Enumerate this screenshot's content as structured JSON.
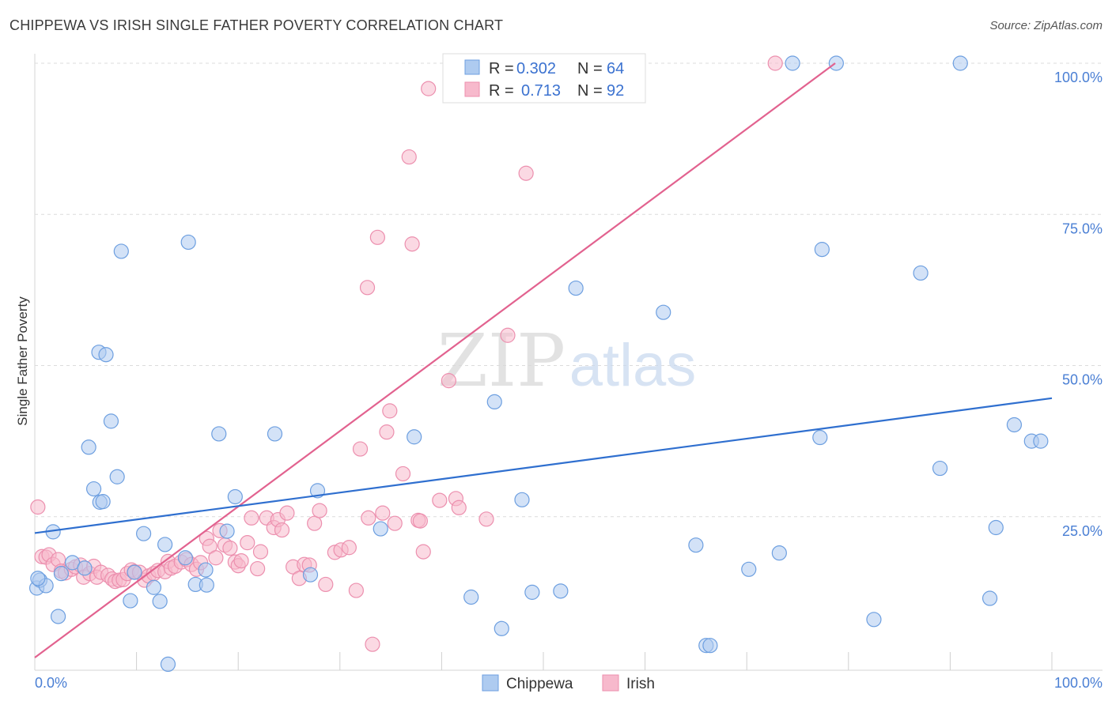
{
  "title": "CHIPPEWA VS IRISH SINGLE FATHER POVERTY CORRELATION CHART",
  "source": "Source: ZipAtlas.com",
  "watermark": {
    "zip": "ZIP",
    "atlas": "atlas"
  },
  "legend": {
    "r_label": "R =",
    "n_label": "N =",
    "chippewa": {
      "r": "0.302",
      "n": "64"
    },
    "irish": {
      "r": "0.713",
      "n": "92"
    }
  },
  "colors": {
    "chippewa_fill": "#aecbf0",
    "chippewa_stroke": "#6d9fe0",
    "chippewa_line": "#2f6fcf",
    "irish_fill": "#f7b9cc",
    "irish_stroke": "#ec8fae",
    "irish_line": "#e2628f",
    "tick_text": "#4a7fd4"
  },
  "chart_data": {
    "type": "scatter",
    "title": "CHIPPEWA VS IRISH SINGLE FATHER POVERTY CORRELATION CHART",
    "xlabel": "",
    "ylabel": "Single Father Poverty",
    "xlim": [
      0,
      100
    ],
    "ylim": [
      0,
      100
    ],
    "x_tick_labels": [
      "0.0%",
      "100.0%"
    ],
    "y_ticks": [
      {
        "value": 25,
        "label": "25.0%"
      },
      {
        "value": 50,
        "label": "50.0%"
      },
      {
        "value": 75,
        "label": "75.0%"
      },
      {
        "value": 100,
        "label": "100.0%"
      }
    ],
    "grid": true,
    "legend_position": "top-center",
    "series": [
      {
        "name": "Chippewa",
        "trend": {
          "x": [
            0,
            100
          ],
          "y": [
            22.3,
            44.6
          ]
        },
        "points": [
          [
            0.2,
            13.2
          ],
          [
            0.5,
            14.5
          ],
          [
            1.1,
            13.6
          ],
          [
            1.8,
            22.5
          ],
          [
            2.3,
            8.5
          ],
          [
            2.6,
            15.6
          ],
          [
            3.7,
            17.4
          ],
          [
            4.9,
            16.5
          ],
          [
            5.3,
            36.5
          ],
          [
            5.8,
            29.6
          ],
          [
            6.4,
            27.4
          ],
          [
            6.7,
            27.5
          ],
          [
            6.3,
            52.2
          ],
          [
            7.0,
            51.8
          ],
          [
            7.5,
            40.8
          ],
          [
            8.1,
            31.6
          ],
          [
            8.5,
            68.9
          ],
          [
            9.4,
            11.1
          ],
          [
            9.8,
            15.8
          ],
          [
            10.7,
            22.2
          ],
          [
            11.7,
            13.3
          ],
          [
            12.3,
            11.0
          ],
          [
            12.8,
            20.4
          ],
          [
            13.1,
            0.6
          ],
          [
            14.8,
            18.2
          ],
          [
            15.1,
            70.4
          ],
          [
            15.8,
            13.8
          ],
          [
            16.8,
            16.2
          ],
          [
            16.9,
            13.7
          ],
          [
            18.1,
            38.7
          ],
          [
            18.9,
            22.6
          ],
          [
            19.7,
            28.3
          ],
          [
            23.6,
            38.7
          ],
          [
            27.1,
            15.4
          ],
          [
            27.8,
            29.3
          ],
          [
            34.0,
            23.0
          ],
          [
            37.3,
            38.2
          ],
          [
            42.9,
            11.7
          ],
          [
            45.2,
            44.0
          ],
          [
            45.9,
            6.5
          ],
          [
            47.9,
            27.8
          ],
          [
            48.9,
            12.5
          ],
          [
            51.7,
            12.7
          ],
          [
            53.2,
            62.8
          ],
          [
            61.8,
            58.8
          ],
          [
            65.0,
            20.3
          ],
          [
            66.0,
            3.7
          ],
          [
            66.4,
            3.7
          ],
          [
            70.2,
            16.3
          ],
          [
            73.2,
            19.0
          ],
          [
            74.5,
            100.0
          ],
          [
            77.2,
            38.1
          ],
          [
            77.4,
            69.2
          ],
          [
            78.8,
            100.0
          ],
          [
            82.5,
            8.0
          ],
          [
            87.1,
            65.3
          ],
          [
            89.0,
            33.0
          ],
          [
            91.0,
            100.0
          ],
          [
            94.5,
            23.2
          ],
          [
            93.9,
            11.5
          ],
          [
            96.3,
            40.2
          ],
          [
            98.0,
            37.5
          ],
          [
            98.9,
            37.5
          ],
          [
            0.3,
            14.8
          ]
        ]
      },
      {
        "name": "Irish",
        "trend": {
          "x": [
            0,
            78.7
          ],
          "y": [
            1.7,
            100
          ]
        },
        "points": [
          [
            0.3,
            26.6
          ],
          [
            0.7,
            18.4
          ],
          [
            1.1,
            18.3
          ],
          [
            1.4,
            18.7
          ],
          [
            1.8,
            17.1
          ],
          [
            2.3,
            17.9
          ],
          [
            2.6,
            16.0
          ],
          [
            3.0,
            15.7
          ],
          [
            3.6,
            16.3
          ],
          [
            4.0,
            16.7
          ],
          [
            4.5,
            17.0
          ],
          [
            4.8,
            15.0
          ],
          [
            5.4,
            15.6
          ],
          [
            5.8,
            16.8
          ],
          [
            6.1,
            15.0
          ],
          [
            6.5,
            15.8
          ],
          [
            7.2,
            15.3
          ],
          [
            7.6,
            14.7
          ],
          [
            7.9,
            14.3
          ],
          [
            8.3,
            14.5
          ],
          [
            8.7,
            14.6
          ],
          [
            9.1,
            15.6
          ],
          [
            9.5,
            16.2
          ],
          [
            9.8,
            15.9
          ],
          [
            10.3,
            15.8
          ],
          [
            10.8,
            14.5
          ],
          [
            11.2,
            15.2
          ],
          [
            11.7,
            15.6
          ],
          [
            12.1,
            16.1
          ],
          [
            12.8,
            15.9
          ],
          [
            13.1,
            17.6
          ],
          [
            13.4,
            16.5
          ],
          [
            13.8,
            16.8
          ],
          [
            14.4,
            17.5
          ],
          [
            14.9,
            17.9
          ],
          [
            15.4,
            17.1
          ],
          [
            15.9,
            16.3
          ],
          [
            16.3,
            17.4
          ],
          [
            16.9,
            21.4
          ],
          [
            17.2,
            20.1
          ],
          [
            17.8,
            18.2
          ],
          [
            18.2,
            22.7
          ],
          [
            18.7,
            20.3
          ],
          [
            19.2,
            19.8
          ],
          [
            19.7,
            17.5
          ],
          [
            20.0,
            16.9
          ],
          [
            20.3,
            17.7
          ],
          [
            20.9,
            20.7
          ],
          [
            21.3,
            24.8
          ],
          [
            21.9,
            16.4
          ],
          [
            22.2,
            19.2
          ],
          [
            22.8,
            24.8
          ],
          [
            23.5,
            23.2
          ],
          [
            23.9,
            24.5
          ],
          [
            24.3,
            22.8
          ],
          [
            24.8,
            25.6
          ],
          [
            25.4,
            16.7
          ],
          [
            26.0,
            14.8
          ],
          [
            26.5,
            17.1
          ],
          [
            27.0,
            17.0
          ],
          [
            27.5,
            23.9
          ],
          [
            28.0,
            26.0
          ],
          [
            28.6,
            13.8
          ],
          [
            29.5,
            19.1
          ],
          [
            30.1,
            19.5
          ],
          [
            30.9,
            19.9
          ],
          [
            31.6,
            12.8
          ],
          [
            32.0,
            36.2
          ],
          [
            32.7,
            62.9
          ],
          [
            32.8,
            24.8
          ],
          [
            33.2,
            3.9
          ],
          [
            33.7,
            71.2
          ],
          [
            34.2,
            25.6
          ],
          [
            34.6,
            39.0
          ],
          [
            34.9,
            42.5
          ],
          [
            35.4,
            23.9
          ],
          [
            36.2,
            32.1
          ],
          [
            36.8,
            84.5
          ],
          [
            37.1,
            70.1
          ],
          [
            37.7,
            24.4
          ],
          [
            37.9,
            24.3
          ],
          [
            38.2,
            19.2
          ],
          [
            38.7,
            95.8
          ],
          [
            39.8,
            27.7
          ],
          [
            40.7,
            47.5
          ],
          [
            41.4,
            28.0
          ],
          [
            41.7,
            26.5
          ],
          [
            44.4,
            24.6
          ],
          [
            46.5,
            55.0
          ],
          [
            48.3,
            81.8
          ],
          [
            48.7,
            100.0
          ],
          [
            72.8,
            100.0
          ]
        ]
      }
    ]
  }
}
